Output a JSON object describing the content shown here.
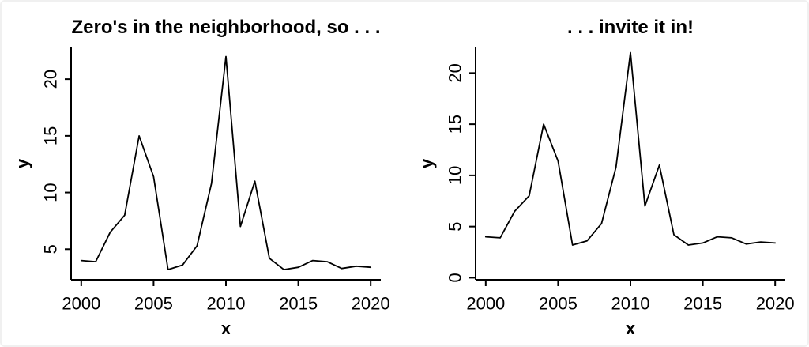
{
  "page": {
    "background_color": "#ffffff",
    "axis_color": "#000000"
  },
  "chart_data": [
    {
      "type": "line",
      "title": "Zero's in the neighborhood, so . . .",
      "xlabel": "x",
      "ylabel": "y",
      "x": [
        2000,
        2001,
        2002,
        2003,
        2004,
        2005,
        2006,
        2007,
        2008,
        2009,
        2010,
        2011,
        2012,
        2013,
        2014,
        2015,
        2016,
        2017,
        2018,
        2019,
        2020
      ],
      "values": [
        4.0,
        3.9,
        6.5,
        8.0,
        15.0,
        11.4,
        3.2,
        3.6,
        5.3,
        10.8,
        22.0,
        7.0,
        11.0,
        4.2,
        3.2,
        3.4,
        4.0,
        3.9,
        3.3,
        3.5,
        3.4
      ],
      "xticks": [
        2000,
        2005,
        2010,
        2015,
        2020
      ],
      "yticks": [
        5,
        10,
        15,
        20
      ],
      "xlim": [
        1999.3,
        2020.7
      ],
      "ylim": [
        2.3,
        22.8
      ],
      "grid": false,
      "legend": null,
      "line_color": "#000000"
    },
    {
      "type": "line",
      "title": ". . . invite it in!",
      "xlabel": "x",
      "ylabel": "y",
      "x": [
        2000,
        2001,
        2002,
        2003,
        2004,
        2005,
        2006,
        2007,
        2008,
        2009,
        2010,
        2011,
        2012,
        2013,
        2014,
        2015,
        2016,
        2017,
        2018,
        2019,
        2020
      ],
      "values": [
        4.0,
        3.9,
        6.5,
        8.0,
        15.0,
        11.4,
        3.2,
        3.6,
        5.3,
        10.8,
        22.0,
        7.0,
        11.0,
        4.2,
        3.2,
        3.4,
        4.0,
        3.9,
        3.3,
        3.5,
        3.4
      ],
      "xticks": [
        2000,
        2005,
        2010,
        2015,
        2020
      ],
      "yticks": [
        0,
        5,
        10,
        15,
        20
      ],
      "xlim": [
        1999.3,
        2020.7
      ],
      "ylim": [
        -0.2,
        22.5
      ],
      "grid": false,
      "legend": null,
      "line_color": "#000000"
    }
  ]
}
